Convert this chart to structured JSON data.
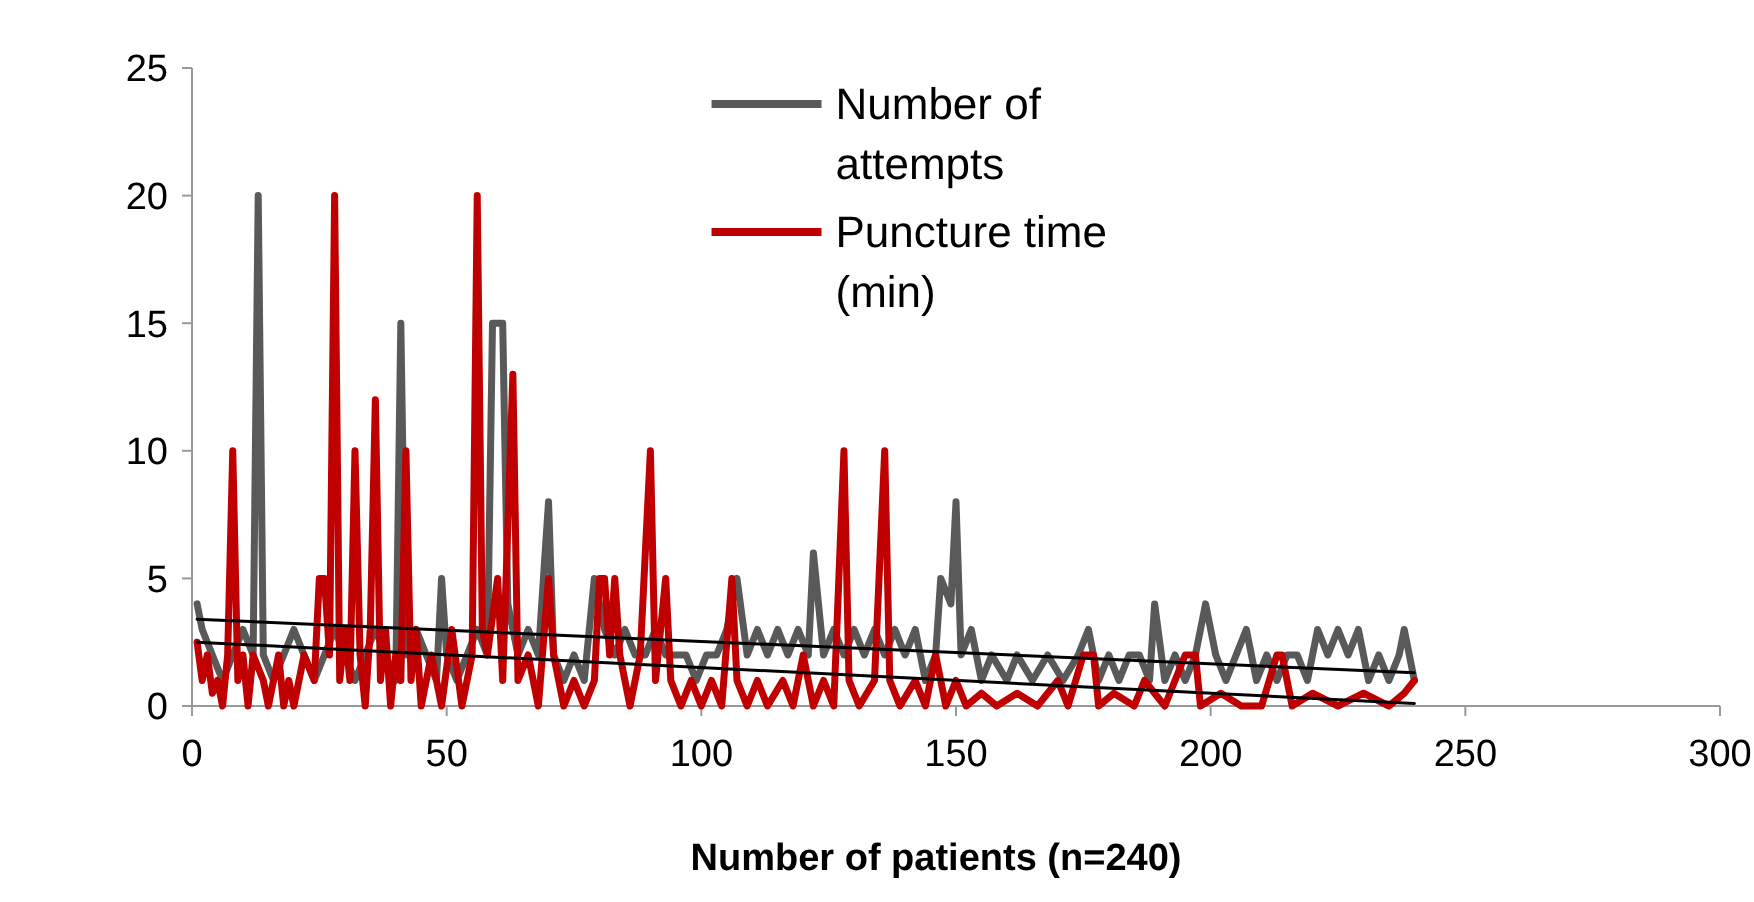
{
  "chart_data": {
    "type": "line",
    "xlabel": "Number of patients (n=240)",
    "xlim": [
      0,
      300
    ],
    "xticks": [
      0,
      50,
      100,
      150,
      200,
      250,
      300
    ],
    "ylim": [
      0,
      25
    ],
    "yticks": [
      0,
      5,
      10,
      15,
      20,
      25
    ],
    "grid": false,
    "legend": "top",
    "marker": "none",
    "line_style": "solid",
    "series": [
      {
        "name": "Number of attempts",
        "color": "#595959",
        "x": [
          1,
          2,
          4,
          6,
          8,
          10,
          12,
          13,
          14,
          16,
          18,
          20,
          22,
          24,
          26,
          28,
          30,
          32,
          34,
          36,
          38,
          40,
          41,
          42,
          44,
          46,
          48,
          49,
          50,
          52,
          54,
          56,
          58,
          59,
          61,
          62,
          64,
          66,
          68,
          70,
          71,
          73,
          75,
          77,
          79,
          81,
          83,
          85,
          87,
          89,
          91,
          93,
          95,
          97,
          99,
          101,
          103,
          105,
          107,
          109,
          111,
          113,
          115,
          117,
          119,
          121,
          122,
          124,
          126,
          128,
          130,
          132,
          134,
          136,
          138,
          140,
          142,
          144,
          146,
          147,
          149,
          150,
          151,
          153,
          155,
          157,
          160,
          162,
          165,
          168,
          171,
          174,
          176,
          178,
          180,
          182,
          184,
          186,
          188,
          189,
          191,
          193,
          195,
          197,
          199,
          201,
          203,
          205,
          207,
          209,
          211,
          213,
          215,
          217,
          219,
          221,
          223,
          225,
          227,
          229,
          231,
          233,
          235,
          237,
          238,
          240
        ],
        "values": [
          4,
          3,
          2,
          1,
          2,
          3,
          2,
          20,
          2,
          1,
          2,
          3,
          2,
          1,
          2,
          3,
          2,
          1,
          2,
          3,
          2,
          1,
          15,
          2,
          3,
          2,
          1,
          5,
          2,
          1,
          2,
          3,
          2,
          15,
          15,
          4,
          2,
          3,
          2,
          8,
          2,
          1,
          2,
          1,
          5,
          3,
          2,
          3,
          2,
          2,
          3,
          2,
          2,
          2,
          1,
          2,
          2,
          3,
          5,
          2,
          3,
          2,
          3,
          2,
          3,
          2,
          6,
          2,
          3,
          2,
          3,
          2,
          3,
          2,
          3,
          2,
          3,
          1,
          2,
          5,
          4,
          8,
          2,
          3,
          1,
          2,
          1,
          2,
          1,
          2,
          1,
          2,
          3,
          1,
          2,
          1,
          2,
          2,
          1,
          4,
          1,
          2,
          1,
          2,
          4,
          2,
          1,
          2,
          3,
          1,
          2,
          1,
          2,
          2,
          1,
          3,
          2,
          3,
          2,
          3,
          1,
          2,
          1,
          2,
          3,
          1
        ]
      },
      {
        "name": "Puncture time (min)",
        "color": "#c00000",
        "x": [
          1,
          2,
          3,
          4,
          5,
          6,
          7,
          8,
          9,
          10,
          11,
          12,
          14,
          15,
          17,
          18,
          19,
          20,
          22,
          24,
          25,
          26,
          27,
          28,
          29,
          30,
          31,
          32,
          33,
          34,
          35,
          36,
          37,
          38,
          39,
          40,
          41,
          42,
          43,
          44,
          45,
          47,
          49,
          51,
          53,
          55,
          56,
          57,
          58,
          60,
          61,
          63,
          64,
          66,
          68,
          70,
          71,
          73,
          75,
          77,
          79,
          80,
          81,
          82,
          83,
          84,
          86,
          88,
          90,
          91,
          93,
          94,
          96,
          98,
          100,
          102,
          104,
          106,
          107,
          109,
          111,
          113,
          116,
          118,
          120,
          122,
          124,
          126,
          128,
          129,
          131,
          134,
          136,
          137,
          139,
          142,
          144,
          146,
          148,
          150,
          152,
          155,
          158,
          162,
          166,
          170,
          172,
          175,
          177,
          178,
          181,
          185,
          187,
          189,
          191,
          195,
          197,
          198,
          202,
          206,
          210,
          213,
          214,
          216,
          220,
          225,
          230,
          235,
          238,
          240
        ],
        "values": [
          2.5,
          1,
          2,
          0.5,
          1,
          0,
          2,
          10,
          1,
          2,
          0,
          2,
          1,
          0,
          2,
          0,
          1,
          0,
          2,
          1,
          5,
          5,
          2,
          20,
          1,
          3,
          1,
          10,
          2,
          0,
          3,
          12,
          1,
          3,
          0,
          2,
          1,
          10,
          1,
          3,
          0,
          2,
          0,
          3,
          0,
          2,
          20,
          3,
          2,
          5,
          1,
          13,
          1,
          2,
          0,
          5,
          2,
          0,
          1,
          0,
          1,
          5,
          5,
          2,
          5,
          2,
          0,
          2,
          10,
          1,
          5,
          1,
          0,
          1,
          0,
          1,
          0,
          5,
          1,
          0,
          1,
          0,
          1,
          0,
          2,
          0,
          1,
          0,
          10,
          1,
          0,
          1,
          10,
          1,
          0,
          1,
          0,
          2,
          0,
          1,
          0,
          0.5,
          0,
          0.5,
          0,
          1,
          0,
          2,
          2,
          0,
          0.5,
          0,
          1,
          0.5,
          0,
          2,
          2,
          0,
          0.5,
          0,
          0,
          2,
          2,
          0,
          0.5,
          0,
          0.5,
          0,
          0.5,
          1
        ]
      },
      {
        "color": "#000000",
        "x": [
          1,
          240
        ],
        "values": [
          3.4,
          1.3
        ]
      },
      {
        "color": "#000000",
        "x": [
          1,
          240
        ],
        "values": [
          2.5,
          0.1
        ]
      }
    ]
  }
}
